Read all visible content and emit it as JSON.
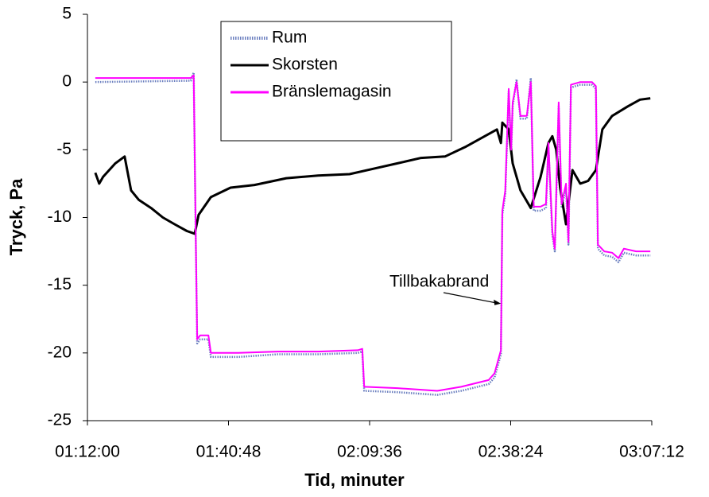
{
  "chart_data": {
    "type": "line",
    "xlabel": "Tid, minuter",
    "ylabel": "Tryck, Pa",
    "xlim": [
      72,
      187.2
    ],
    "xticks": [
      {
        "value": 72,
        "label": "01:12:00"
      },
      {
        "value": 100.8,
        "label": "01:40:48"
      },
      {
        "value": 129.6,
        "label": "02:09:36"
      },
      {
        "value": 158.4,
        "label": "02:38:24"
      },
      {
        "value": 187.2,
        "label": "03:07:12"
      }
    ],
    "ylim": [
      -25,
      5
    ],
    "yticks": [
      5,
      0,
      -5,
      -10,
      -15,
      -20,
      -25
    ],
    "grid": false,
    "legend": "top",
    "annotation": {
      "text": "Tillbakabrand",
      "x": 156.4,
      "y": -16
    },
    "series": [
      {
        "name": "Rum",
        "color": "#6b7fbf",
        "dash": true,
        "x": [
          73.6,
          93.1,
          93.7,
          94.1,
          94.4,
          95.0,
          96.7,
          97.2,
          102.8,
          110.9,
          119.1,
          127.2,
          128.1,
          128.5,
          135.3,
          143.4,
          148.3,
          153.9,
          155.1,
          156.4,
          156.7,
          157.3,
          158.0,
          158.5,
          158.8,
          159.6,
          160.4,
          161.7,
          162.5,
          163.1,
          164.5,
          165.6,
          166.1,
          166.9,
          167.4,
          168.2,
          168.8,
          169.7,
          170.2,
          170.7,
          172.6,
          175.0,
          175.8,
          176.2,
          177.5,
          179.1,
          180.4,
          181.5,
          184.0,
          186.9
        ],
        "values": [
          0.0,
          0.1,
          0.7,
          -11.2,
          -19.3,
          -19.0,
          -19.0,
          -20.3,
          -20.3,
          -20.1,
          -20.1,
          -20.0,
          -19.9,
          -22.8,
          -22.9,
          -23.1,
          -22.8,
          -22.3,
          -21.8,
          -20.1,
          -9.8,
          -8.3,
          -0.7,
          -5.3,
          -1.8,
          0.2,
          -2.7,
          -2.7,
          0.3,
          -9.5,
          -9.5,
          -9.3,
          -4.8,
          -11.3,
          -12.5,
          -1.8,
          -9.3,
          -7.8,
          -12.0,
          -0.4,
          -0.2,
          -0.2,
          -0.5,
          -12.3,
          -12.8,
          -12.9,
          -13.3,
          -12.6,
          -12.8,
          -12.8
        ]
      },
      {
        "name": "Skorsten",
        "color": "#000000",
        "dash": false,
        "x": [
          73.6,
          74.4,
          75.2,
          77.7,
          79.6,
          80.9,
          82.5,
          85.0,
          87.4,
          89.8,
          92.3,
          93.9,
          94.7,
          97.2,
          101.2,
          106.1,
          112.6,
          119.1,
          125.5,
          130.4,
          135.3,
          140.1,
          145.0,
          149.1,
          153.1,
          155.6,
          156.4,
          156.7,
          158.0,
          158.8,
          160.4,
          162.5,
          164.5,
          166.1,
          166.9,
          167.7,
          168.5,
          169.7,
          171.0,
          172.6,
          174.2,
          175.8,
          177.1,
          179.1,
          182.3,
          184.8,
          186.9
        ],
        "values": [
          -6.7,
          -7.5,
          -7.0,
          -6.0,
          -5.5,
          -8.0,
          -8.7,
          -9.3,
          -10.0,
          -10.5,
          -11.0,
          -11.2,
          -9.8,
          -8.5,
          -7.8,
          -7.6,
          -7.1,
          -6.9,
          -6.8,
          -6.4,
          -6.0,
          -5.6,
          -5.5,
          -4.8,
          -4.0,
          -3.5,
          -4.5,
          -3.0,
          -3.5,
          -6.0,
          -8.0,
          -9.3,
          -7.0,
          -4.5,
          -4.0,
          -5.0,
          -7.8,
          -10.5,
          -6.5,
          -7.5,
          -7.3,
          -6.5,
          -3.5,
          -2.5,
          -1.8,
          -1.3,
          -1.2
        ]
      },
      {
        "name": "Bränslemagasin",
        "color": "#ff00ff",
        "dash": false,
        "x": [
          73.6,
          93.1,
          93.7,
          94.1,
          94.4,
          95.0,
          96.7,
          97.2,
          102.8,
          110.9,
          119.1,
          127.2,
          128.1,
          128.5,
          135.3,
          143.4,
          148.3,
          153.9,
          155.1,
          156.4,
          156.7,
          157.3,
          158.0,
          158.5,
          158.8,
          159.6,
          160.4,
          161.7,
          162.5,
          163.1,
          164.5,
          165.6,
          166.1,
          166.9,
          167.4,
          168.2,
          168.8,
          169.7,
          170.2,
          170.7,
          172.6,
          175.0,
          175.8,
          176.2,
          177.5,
          179.1,
          180.4,
          181.5,
          184.0,
          186.9
        ],
        "values": [
          0.3,
          0.3,
          0.5,
          -11.0,
          -19.0,
          -18.7,
          -18.7,
          -20.0,
          -20.0,
          -19.9,
          -19.9,
          -19.8,
          -19.7,
          -22.5,
          -22.6,
          -22.8,
          -22.5,
          -22.0,
          -21.5,
          -19.8,
          -9.5,
          -8.0,
          -0.5,
          -5.0,
          -1.5,
          0.0,
          -2.5,
          -2.5,
          0.0,
          -9.2,
          -9.2,
          -9.0,
          -4.5,
          -11.0,
          -12.3,
          -1.5,
          -9.0,
          -7.5,
          -11.8,
          -0.2,
          0.0,
          0.0,
          -0.3,
          -12.0,
          -12.5,
          -12.6,
          -13.0,
          -12.3,
          -12.5,
          -12.5
        ]
      }
    ]
  }
}
